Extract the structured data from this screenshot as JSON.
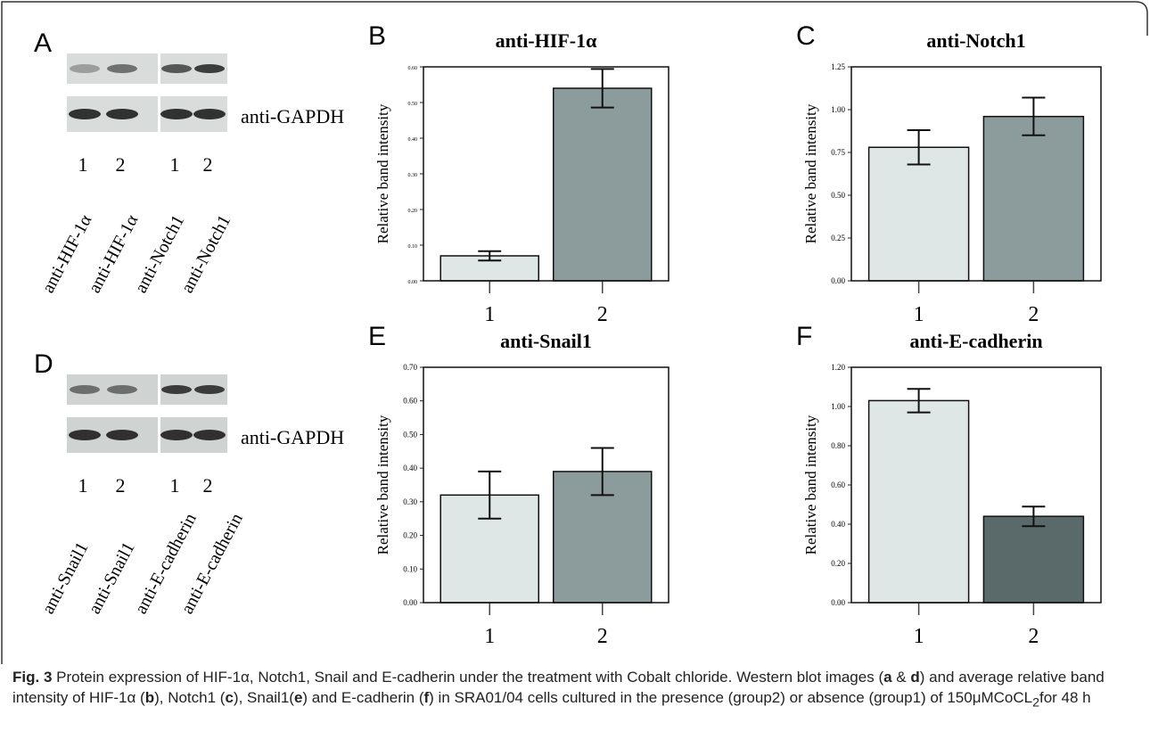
{
  "panels": {
    "blots": [
      {
        "panel": "A",
        "lanes": [
          "1",
          "2",
          "1",
          "2"
        ],
        "loading": "anti-GAPDH",
        "targets": [
          "anti-HIF-1α",
          "anti-HIF-1α",
          "anti-Notch1",
          "anti-Notch1"
        ]
      },
      {
        "panel": "D",
        "lanes": [
          "1",
          "2",
          "1",
          "2"
        ],
        "loading": "anti-GAPDH",
        "targets": [
          "anti-Snail1",
          "anti-Snail1",
          "anti-E-cadherin",
          "anti-E-cadherin"
        ]
      }
    ]
  },
  "chart_data": [
    {
      "type": "bar",
      "panel": "B",
      "title": "anti-HIF-1α",
      "y_label": "Relative band intensity",
      "categories": [
        "1",
        "2"
      ],
      "values": [
        0.07,
        0.54
      ],
      "errors": [
        0.013,
        0.054
      ],
      "colors": [
        "#dfe6e6",
        "#8c9c9c"
      ],
      "ylim": [
        0,
        0.6
      ],
      "yticks": [
        {
          "value": 0,
          "label": "0.00"
        },
        {
          "value": 0.1,
          "label": "0.10"
        },
        {
          "value": 0.2,
          "label": "0.20"
        },
        {
          "value": 0.3,
          "label": "0.30"
        },
        {
          "value": 0.4,
          "label": "0.40"
        },
        {
          "value": 0.5,
          "label": "0.50"
        },
        {
          "value": 0.6,
          "label": "0.60"
        }
      ]
    },
    {
      "type": "bar",
      "panel": "C",
      "title": "anti-Notch1",
      "y_label": "Relative band intensity",
      "categories": [
        "1",
        "2"
      ],
      "values": [
        0.78,
        0.96
      ],
      "errors": [
        0.1,
        0.11
      ],
      "colors": [
        "#dfe6e6",
        "#8c9c9c"
      ],
      "ylim": [
        0,
        1.25
      ],
      "yticks": [
        {
          "value": 0,
          "label": "0.00"
        },
        0.25,
        {
          "value": 0.5,
          "label": "0.50"
        },
        0.75,
        {
          "value": 1,
          "label": "1.00"
        },
        1.25
      ]
    },
    {
      "type": "bar",
      "panel": "E",
      "title": "anti-Snail1",
      "y_label": "Relative band intensity",
      "categories": [
        "1",
        "2"
      ],
      "values": [
        0.32,
        0.39
      ],
      "errors": [
        0.07,
        0.07
      ],
      "colors": [
        "#dfe6e6",
        "#8c9c9c"
      ],
      "ylim": [
        0,
        0.7
      ],
      "yticks": [
        {
          "value": 0,
          "label": "0.00"
        },
        {
          "value": 0.1,
          "label": "0.10"
        },
        {
          "value": 0.2,
          "label": "0.20"
        },
        {
          "value": 0.3,
          "label": "0.30"
        },
        {
          "value": 0.4,
          "label": "0.40"
        },
        {
          "value": 0.5,
          "label": "0.50"
        },
        {
          "value": 0.6,
          "label": "0.60"
        },
        {
          "value": 0.7,
          "label": "0.70"
        }
      ]
    },
    {
      "type": "bar",
      "panel": "F",
      "title": "anti-E-cadherin",
      "y_label": "Relative band intensity",
      "categories": [
        "1",
        "2"
      ],
      "values": [
        1.03,
        0.44
      ],
      "errors": [
        0.06,
        0.05
      ],
      "colors": [
        "#dfe6e6",
        "#5a6a6a"
      ],
      "ylim": [
        0,
        1.2
      ],
      "yticks": [
        {
          "value": 0,
          "label": "0.00"
        },
        {
          "value": 0.2,
          "label": "0.20"
        },
        {
          "value": 0.4,
          "label": "0.40"
        },
        {
          "value": 0.6,
          "label": "0.60"
        },
        {
          "value": 0.8,
          "label": "0.80"
        },
        {
          "value": 1,
          "label": "1.00"
        },
        {
          "value": 1.2,
          "label": "1.20"
        }
      ]
    }
  ],
  "caption": [
    {
      "text": "Fig. 3",
      "style": "bold"
    },
    {
      "text": " Protein expression of HIF-1α, Notch1, Snail and E-cadherin under the treatment with Cobalt chloride. Western blot images (",
      "style": "plain"
    },
    {
      "text": "a",
      "style": "bold"
    },
    {
      "text": " & ",
      "style": "plain"
    },
    {
      "text": "d",
      "style": "bold"
    },
    {
      "text": ") and average relative band intensity of HIF-1α (",
      "style": "plain"
    },
    {
      "text": "b",
      "style": "bold"
    },
    {
      "text": "), Notch1 (",
      "style": "plain"
    },
    {
      "text": "c",
      "style": "bold"
    },
    {
      "text": "), Snail1(",
      "style": "plain"
    },
    {
      "text": "e",
      "style": "bold"
    },
    {
      "text": ") and E-cadherin (",
      "style": "plain"
    },
    {
      "text": "f",
      "style": "bold"
    },
    {
      "text": ") in SRA01/04 cells cultured in the presence (group2) or absence (group1) of 150μMCoCL",
      "style": "plain"
    },
    {
      "text": "2",
      "style": "sub"
    },
    {
      "text": "for 48 h",
      "style": "plain"
    }
  ]
}
